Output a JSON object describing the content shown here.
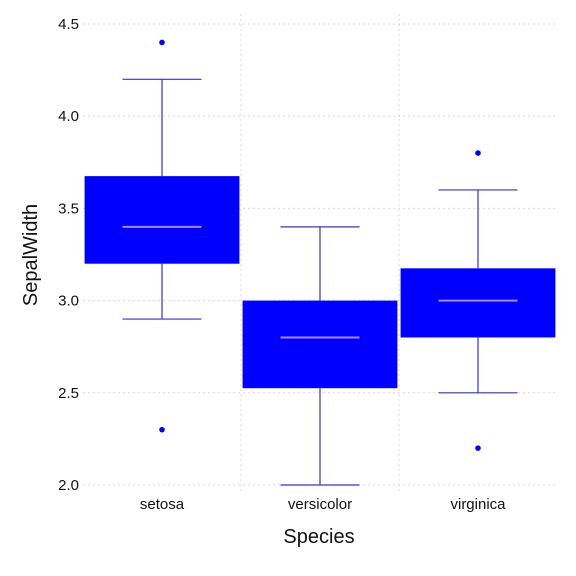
{
  "chart_data": {
    "type": "box",
    "xlabel": "Species",
    "ylabel": "SepalWidth",
    "title": "",
    "ylim": [
      2.0,
      4.5
    ],
    "yticks": [
      "2.0",
      "2.5",
      "3.0",
      "3.5",
      "4.0",
      "4.5"
    ],
    "grid": true,
    "legend": "none",
    "categories": [
      "setosa",
      "versicolor",
      "virginica"
    ],
    "boxes": [
      {
        "category": "setosa",
        "q1": 3.2,
        "median": 3.4,
        "q3": 3.675,
        "whisker_low": 2.9,
        "whisker_high": 4.2,
        "outliers": [
          4.4,
          2.3
        ]
      },
      {
        "category": "versicolor",
        "q1": 2.525,
        "median": 2.8,
        "q3": 3.0,
        "whisker_low": 2.0,
        "whisker_high": 3.4,
        "outliers": []
      },
      {
        "category": "virginica",
        "q1": 2.8,
        "median": 3.0,
        "q3": 3.175,
        "whisker_low": 2.5,
        "whisker_high": 3.6,
        "outliers": [
          3.8,
          2.2
        ]
      }
    ],
    "colors": {
      "box_fill": "#0000ff",
      "median": "#a78bd8",
      "whisker": "#3333cc",
      "outlier": "#0000ff",
      "grid": "#d9d9d9",
      "text": "#111111"
    }
  }
}
